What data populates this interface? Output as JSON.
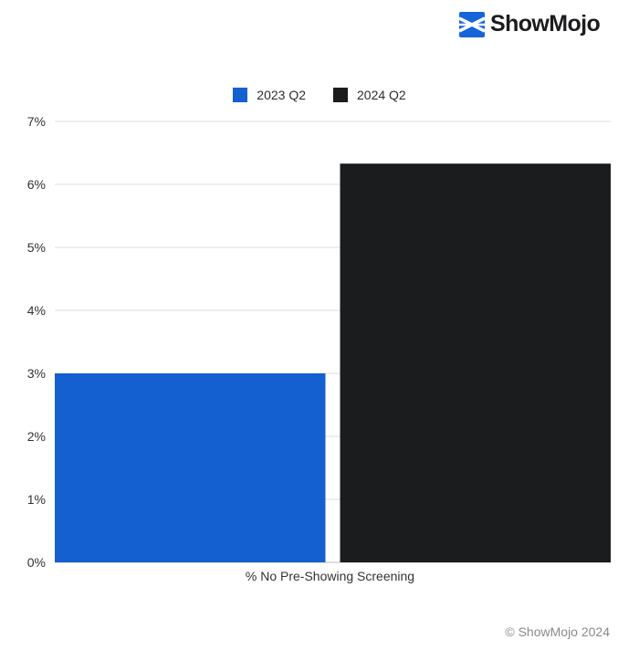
{
  "brand": {
    "name": "ShowMojo",
    "logo_icon": "showmojo-logo-icon",
    "logo_color": "#1565d8"
  },
  "footer": {
    "copyright": "© ShowMojo 2024"
  },
  "chart_data": {
    "type": "bar",
    "categories": [
      "% No Pre-Showing Screening"
    ],
    "series": [
      {
        "name": "2023 Q2",
        "values": [
          3.0
        ],
        "color": "#1460d0"
      },
      {
        "name": "2024 Q2",
        "values": [
          6.33
        ],
        "color": "#1b1c1e"
      }
    ],
    "ylim": [
      0,
      7
    ],
    "yticks": [
      0,
      1,
      2,
      3,
      4,
      5,
      6,
      7
    ],
    "ytick_labels": [
      "0%",
      "1%",
      "2%",
      "3%",
      "4%",
      "5%",
      "6%",
      "7%"
    ],
    "legend_position": "top-center",
    "grid": true
  }
}
